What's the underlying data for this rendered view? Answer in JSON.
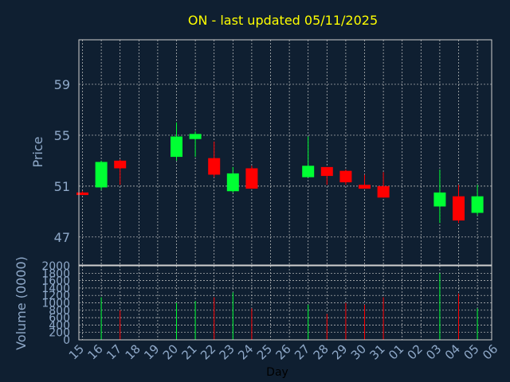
{
  "chart_data": {
    "type": "candlestick",
    "title": "ON - last updated 05/11/2025",
    "xlabel": "Day",
    "price_panel": {
      "ylabel": "Price",
      "ylim": [
        44.8,
        62.5
      ],
      "yticks": [
        47,
        51,
        55,
        59
      ],
      "grid": true
    },
    "volume_panel": {
      "ylabel": "Volume (0000)",
      "ylim": [
        0,
        2000
      ],
      "yticks": [
        0,
        200,
        400,
        600,
        800,
        1000,
        1200,
        1400,
        1600,
        1800,
        2000
      ],
      "grid": true
    },
    "x_ticks": [
      "15",
      "16",
      "17",
      "18",
      "19",
      "20",
      "21",
      "22",
      "23",
      "24",
      "25",
      "26",
      "27",
      "28",
      "29",
      "30",
      "31",
      "01",
      "02",
      "03",
      "04",
      "05",
      "06"
    ],
    "candles": [
      {
        "x": "15",
        "open": 50.5,
        "high": 50.6,
        "low": 50.3,
        "close": 50.3,
        "volume": 0
      },
      {
        "x": "16",
        "open": 50.9,
        "high": 53.0,
        "low": 50.7,
        "close": 52.9,
        "volume": 1150
      },
      {
        "x": "17",
        "open": 53.0,
        "high": 53.1,
        "low": 51.1,
        "close": 52.4,
        "volume": 800
      },
      {
        "x": "20",
        "open": 53.3,
        "high": 56.0,
        "low": 53.0,
        "close": 54.9,
        "volume": 1000
      },
      {
        "x": "21",
        "open": 54.7,
        "high": 55.3,
        "low": 53.3,
        "close": 55.1,
        "volume": 1050
      },
      {
        "x": "22",
        "open": 53.2,
        "high": 54.5,
        "low": 51.7,
        "close": 51.9,
        "volume": 1150
      },
      {
        "x": "23",
        "open": 50.6,
        "high": 52.5,
        "low": 50.5,
        "close": 52.0,
        "volume": 1280
      },
      {
        "x": "24",
        "open": 52.4,
        "high": 52.6,
        "low": 50.8,
        "close": 50.8,
        "volume": 850
      },
      {
        "x": "27",
        "open": 51.7,
        "high": 54.9,
        "low": 51.7,
        "close": 52.6,
        "volume": 950
      },
      {
        "x": "28",
        "open": 52.5,
        "high": 52.5,
        "low": 51.1,
        "close": 51.8,
        "volume": 700
      },
      {
        "x": "29",
        "open": 52.2,
        "high": 52.3,
        "low": 51.1,
        "close": 51.3,
        "volume": 1000
      },
      {
        "x": "30",
        "open": 51.1,
        "high": 51.9,
        "low": 50.8,
        "close": 50.8,
        "volume": 950
      },
      {
        "x": "31",
        "open": 51.0,
        "high": 52.1,
        "low": 50.1,
        "close": 50.1,
        "volume": 1150
      },
      {
        "x": "03",
        "open": 49.4,
        "high": 52.3,
        "low": 48.1,
        "close": 50.5,
        "volume": 1800
      },
      {
        "x": "04",
        "open": 50.2,
        "high": 51.1,
        "low": 48.1,
        "close": 48.3,
        "volume": 1250
      },
      {
        "x": "05",
        "open": 48.9,
        "high": 51.1,
        "low": 48.7,
        "close": 50.2,
        "volume": 850
      }
    ],
    "colors": {
      "background": "#0f1f31",
      "title": "#ffff00",
      "axis_text": "#8fa9c9",
      "up": "#00ff33",
      "down": "#ff0000",
      "grid": "#c8c8c8",
      "axis": "#d0d0d0"
    }
  }
}
